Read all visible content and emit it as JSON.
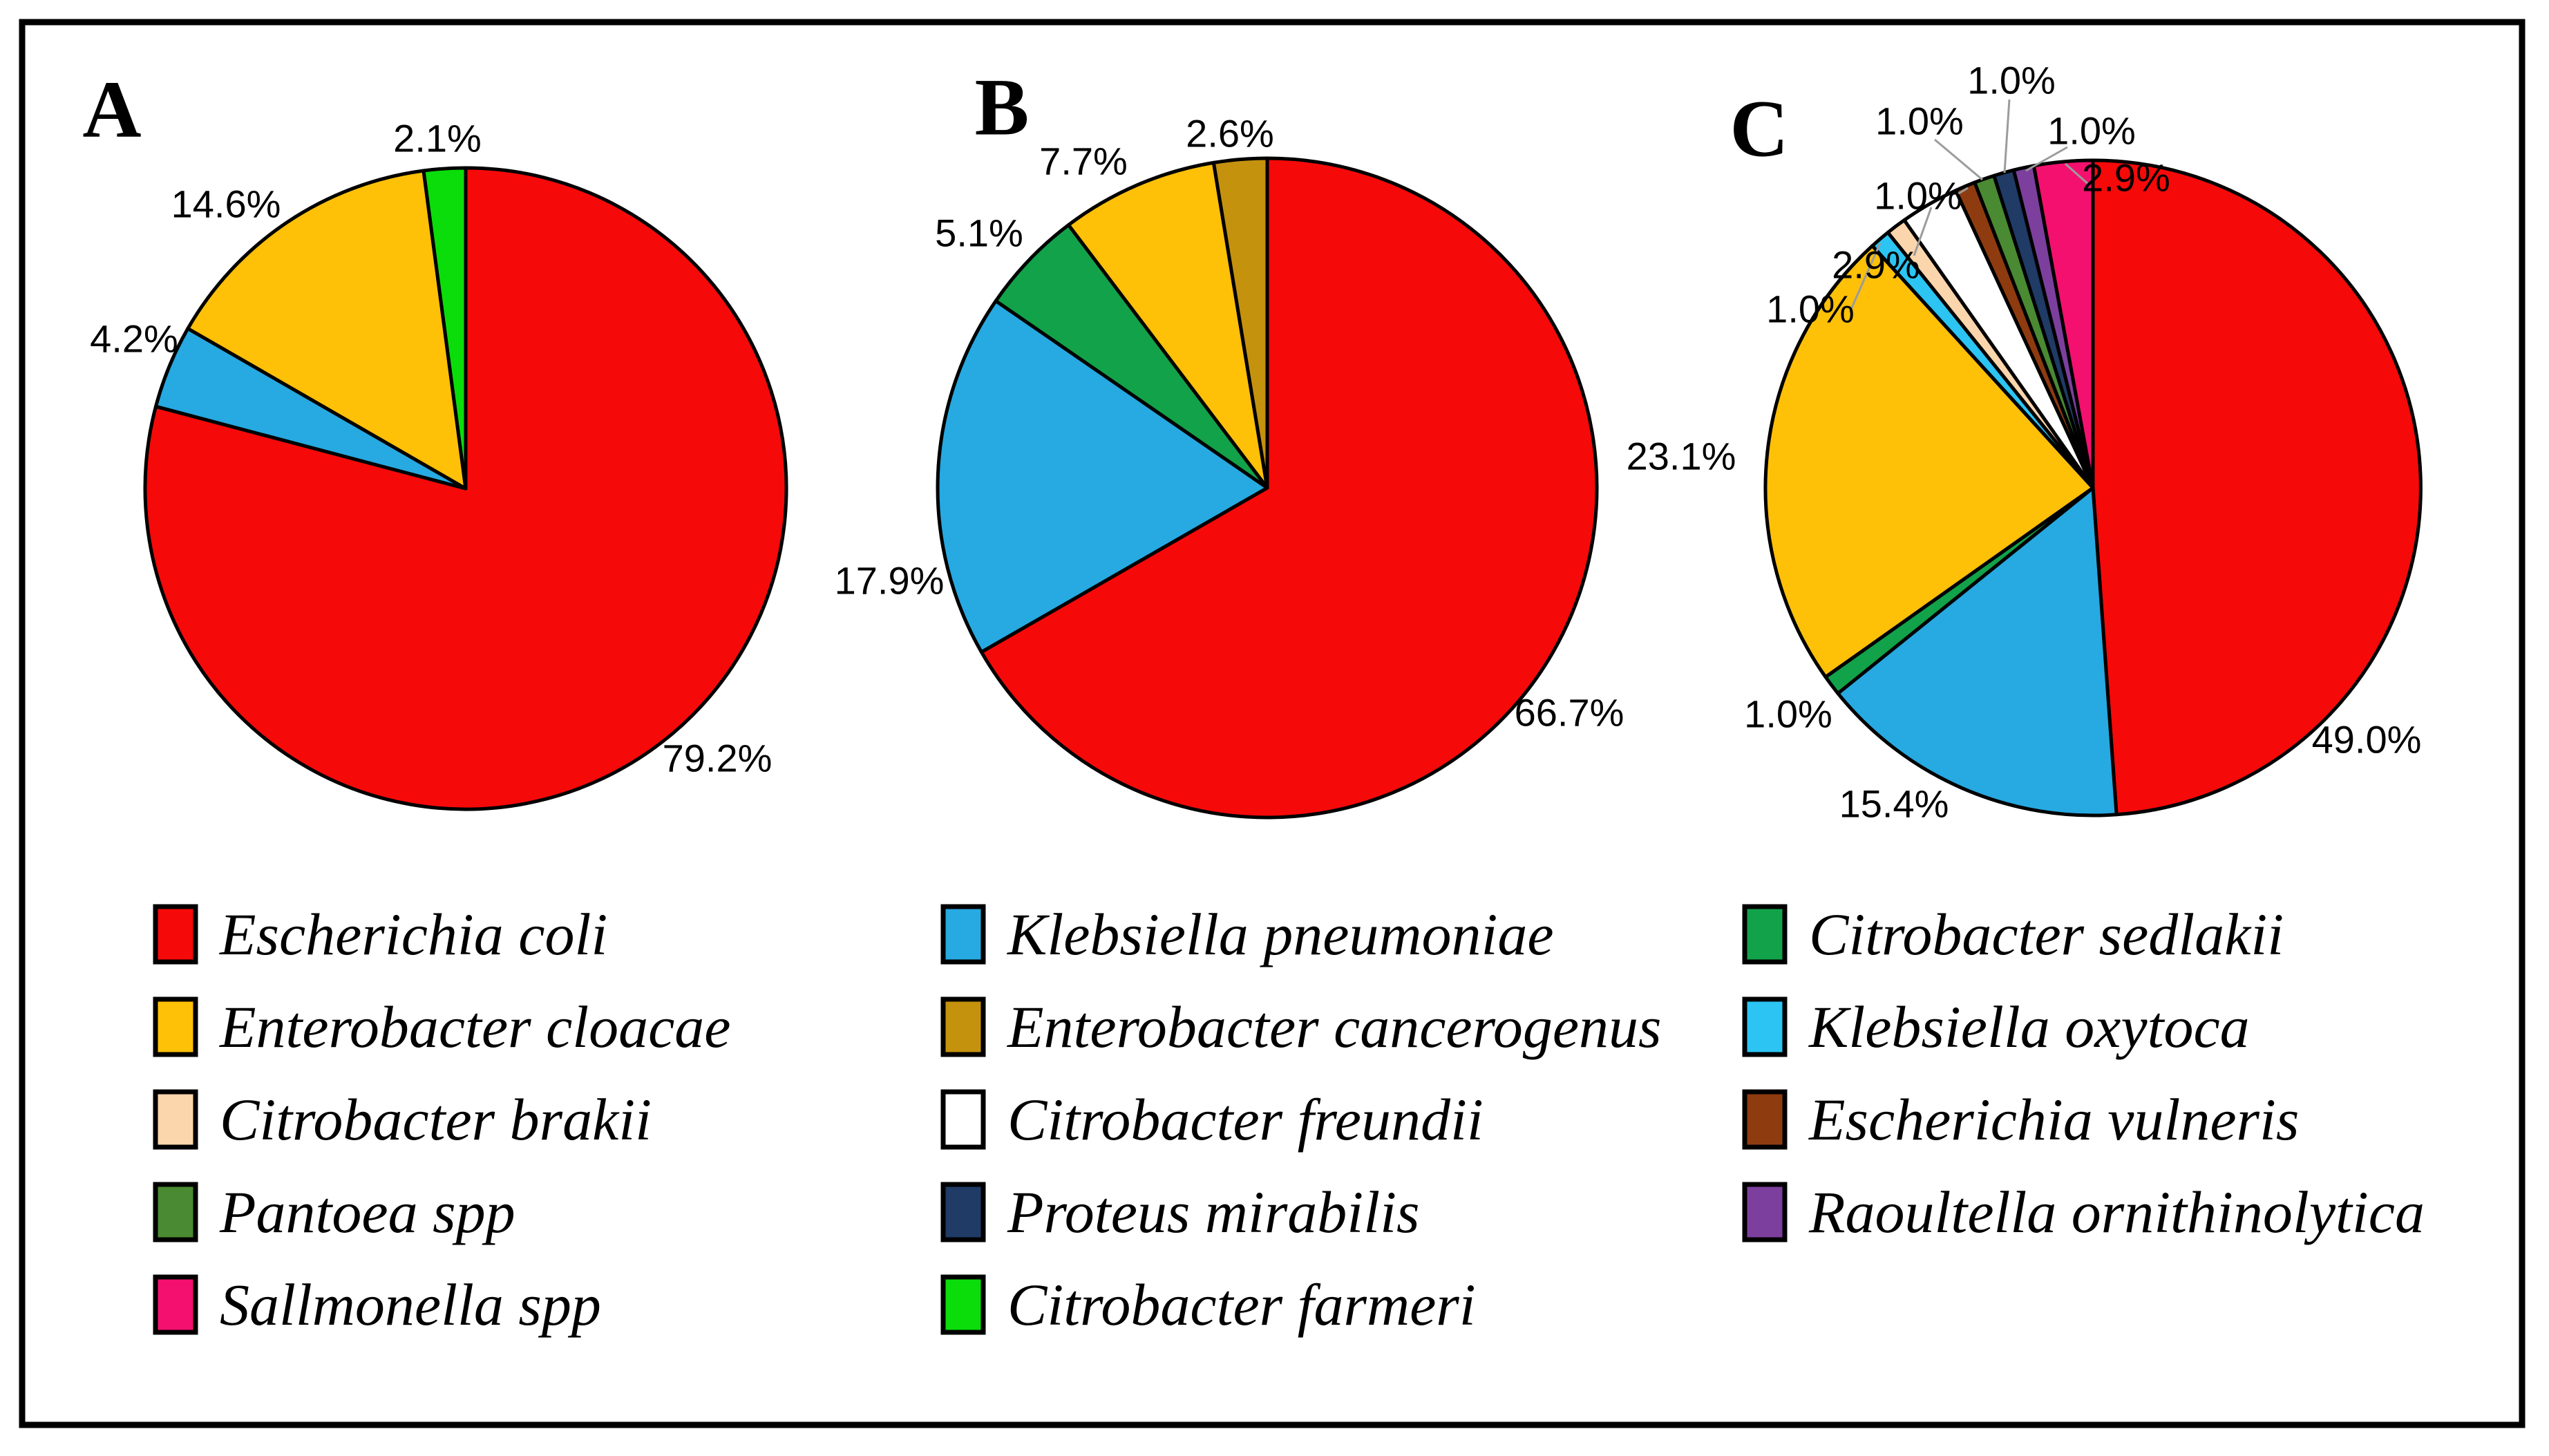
{
  "figure": {
    "type": "pie-figure",
    "panel_labels": [
      "A",
      "B",
      "C"
    ],
    "outline_color": "#000000",
    "background_color": "#ffffff",
    "leader_line_color": "#9c9c9c"
  },
  "species_colors": {
    "Escherichia coli": "#F60909",
    "Klebsiella pneumoniae": "#27A9E1",
    "Enterobacter cloacae": "#FFC008",
    "Citrobacter farmeri": "#0ADD0A",
    "Citrobacter sedlakii": "#12A24A",
    "Enterobacter cancerogenus": "#C5920E",
    "Citrobacter brakii": "#FBD5AC",
    "Pantoea spp": "#4A8A32",
    "Sallmonella spp": "#F4106E",
    "Klebsiella oxytoca": "#2BC4F3",
    "Citrobacter freundii": "#FFFFFF",
    "Proteus mirabilis": "#1F3B66",
    "Escherichia vulneris": "#8F3B10",
    "Raoultella ornithinolytica": "#7D3F9D"
  },
  "chart_data": [
    {
      "type": "pie",
      "panel": "A",
      "start_angle_deg": 0,
      "direction": "clockwise",
      "slices": [
        {
          "name": "Escherichia coli",
          "value": 79.2,
          "label": "79.2%"
        },
        {
          "name": "Klebsiella pneumoniae",
          "value": 4.2,
          "label": "4.2%"
        },
        {
          "name": "Enterobacter cloacae",
          "value": 14.6,
          "label": "14.6%"
        },
        {
          "name": "Citrobacter farmeri",
          "value": 2.1,
          "label": "2.1%"
        }
      ]
    },
    {
      "type": "pie",
      "panel": "B",
      "start_angle_deg": 0,
      "direction": "clockwise",
      "slices": [
        {
          "name": "Escherichia coli",
          "value": 66.7,
          "label": "66.7%"
        },
        {
          "name": "Klebsiella pneumoniae",
          "value": 17.9,
          "label": "17.9%"
        },
        {
          "name": "Citrobacter sedlakii",
          "value": 5.1,
          "label": "5.1%"
        },
        {
          "name": "Enterobacter cloacae",
          "value": 7.7,
          "label": "7.7%"
        },
        {
          "name": "Enterobacter cancerogenus",
          "value": 2.6,
          "label": "2.6%"
        }
      ]
    },
    {
      "type": "pie",
      "panel": "C",
      "start_angle_deg": 0,
      "direction": "clockwise",
      "slices": [
        {
          "name": "Escherichia coli",
          "value": 49.0,
          "label": "49.0%"
        },
        {
          "name": "Klebsiella pneumoniae",
          "value": 15.4,
          "label": "15.4%"
        },
        {
          "name": "Citrobacter sedlakii",
          "value": 1.0,
          "label": "1.0%"
        },
        {
          "name": "Enterobacter cloacae",
          "value": 23.1,
          "label": "23.1%"
        },
        {
          "name": "Klebsiella oxytoca",
          "value": 1.0,
          "label": "1.0%"
        },
        {
          "name": "Citrobacter brakii",
          "value": 1.0,
          "label": ""
        },
        {
          "name": "Citrobacter freundii",
          "value": 2.9,
          "label": "2.9%"
        },
        {
          "name": "Escherichia vulneris",
          "value": 1.0,
          "label": "1.0%"
        },
        {
          "name": "Pantoea spp",
          "value": 1.0,
          "label": "1.0%"
        },
        {
          "name": "Proteus mirabilis",
          "value": 1.0,
          "label": "1.0%"
        },
        {
          "name": "Raoultella ornithinolytica",
          "value": 1.0,
          "label": "1.0%"
        },
        {
          "name": "Sallmonella spp",
          "value": 2.9,
          "label": "2.9%"
        }
      ]
    }
  ],
  "legend": {
    "columns": [
      [
        "Escherichia coli",
        "Enterobacter cloacae",
        "Citrobacter brakii",
        "Pantoea spp",
        "Sallmonella spp"
      ],
      [
        "Klebsiella pneumoniae",
        "Enterobacter cancerogenus",
        "Citrobacter freundii",
        "Proteus mirabilis",
        "Citrobacter farmeri"
      ],
      [
        "Citrobacter sedlakii",
        "Klebsiella oxytoca",
        "Escherichia vulneris",
        "Raoultella ornithinolytica"
      ]
    ]
  }
}
